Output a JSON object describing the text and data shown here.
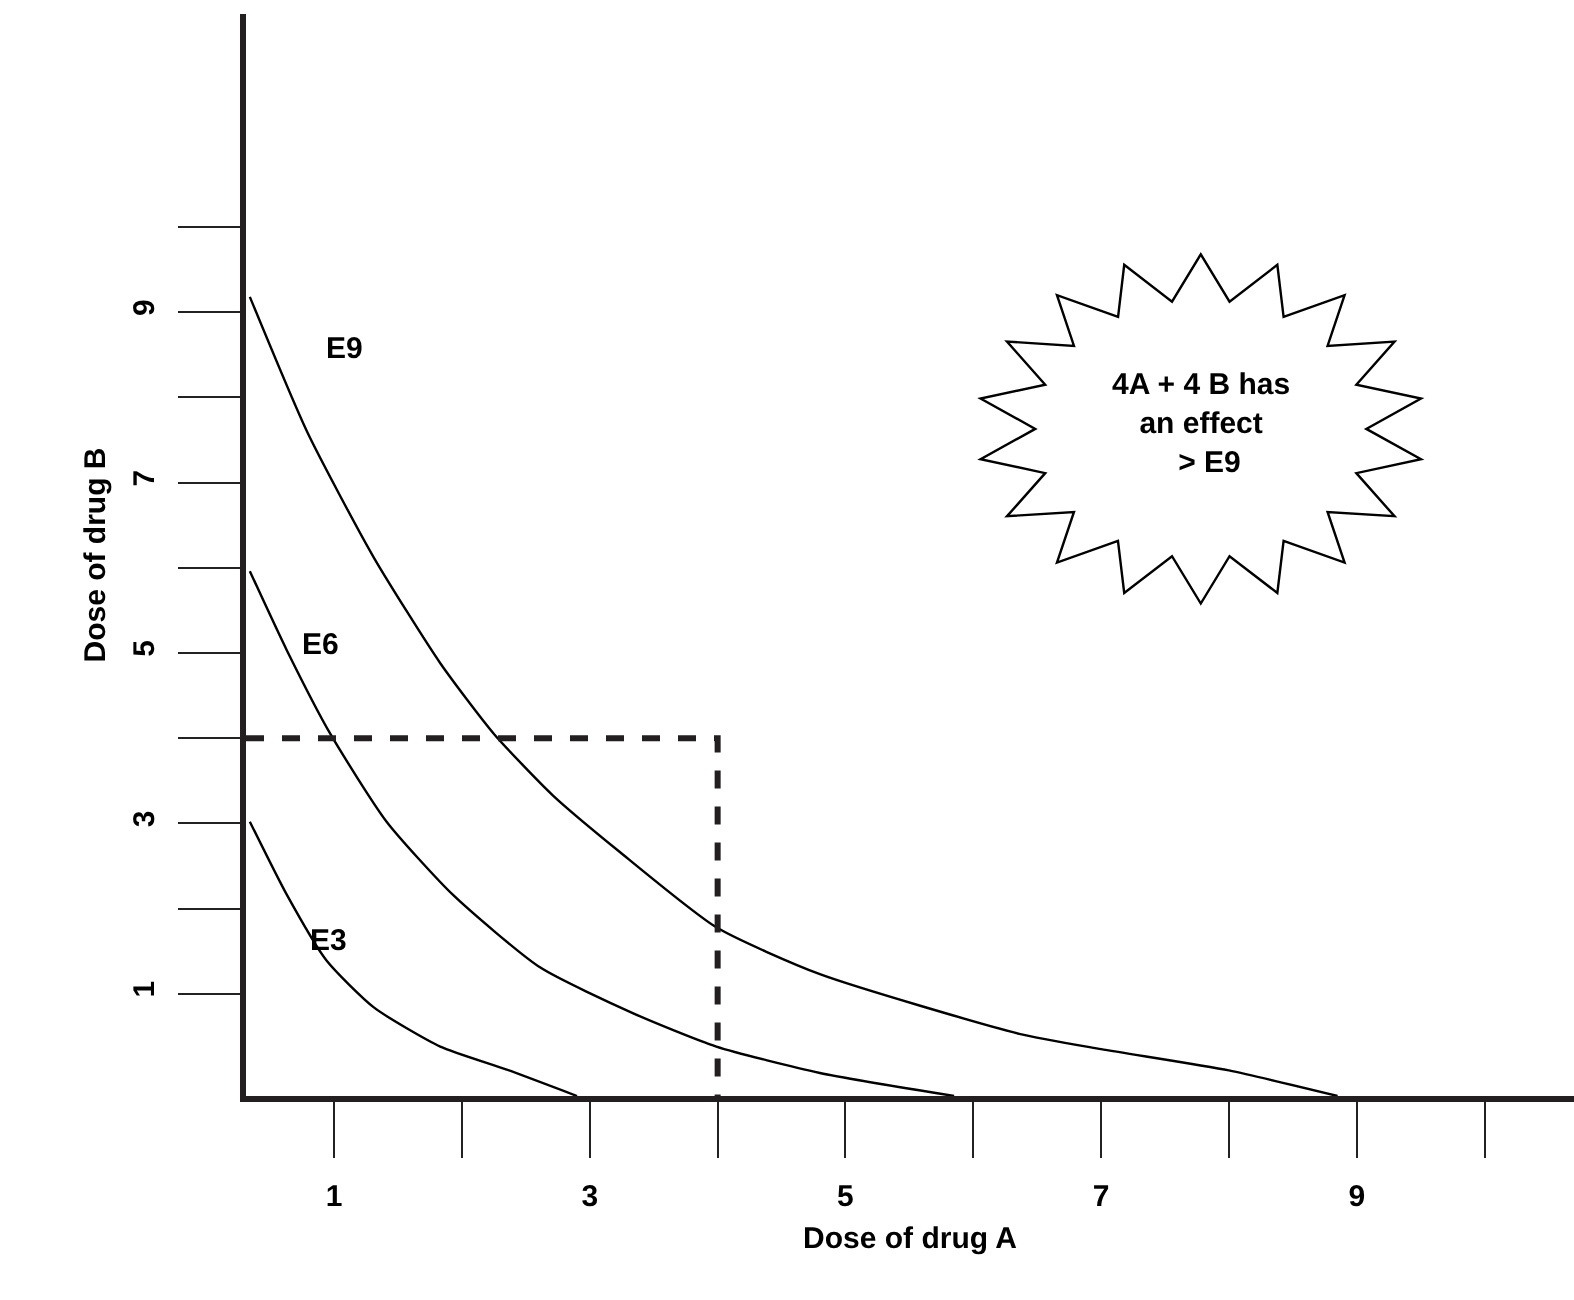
{
  "chart_data": {
    "type": "line",
    "xlabel": "Dose of drug A",
    "ylabel": "Dose of drug B",
    "xlim": [
      0.31,
      10.7
    ],
    "ylim": [
      -0.2,
      12.5
    ],
    "xticks": [
      1,
      3,
      5,
      7,
      9
    ],
    "yticks": [
      1,
      3,
      5,
      7,
      9
    ],
    "grid": false,
    "marker": "none",
    "series": [
      {
        "color": "#000000",
        "line_style": "solid",
        "x": [
          0.34,
          0.79,
          1.31,
          1.83,
          2.25,
          2.71,
          3.23,
          3.99,
          4.8,
          6.36,
          7.0,
          8.0,
          8.85
        ],
        "values": [
          9.18,
          7.59,
          6.12,
          4.88,
          4.05,
          3.33,
          2.67,
          1.78,
          1.23,
          0.53,
          0.35,
          0.1,
          -0.2
        ]
      },
      {
        "color": "#000000",
        "line_style": "solid",
        "x": [
          0.34,
          0.63,
          0.97,
          1.41,
          1.93,
          2.61,
          3.34,
          3.99,
          4.8,
          5.85
        ],
        "values": [
          5.96,
          5.03,
          4.05,
          3.02,
          2.16,
          1.31,
          0.77,
          0.38,
          0.07,
          -0.2
        ]
      },
      {
        "color": "#000000",
        "line_style": "solid",
        "x": [
          0.34,
          0.63,
          0.94,
          1.31,
          1.83,
          2.35,
          2.9
        ],
        "values": [
          3.02,
          2.16,
          1.39,
          0.84,
          0.38,
          0.11,
          -0.2
        ]
      },
      {
        "color": "#231f20",
        "line_style": "dashed",
        "x": [
          0.31,
          4,
          4
        ],
        "values": [
          4,
          4,
          -0.2
        ]
      }
    ],
    "annotations": [
      "E9",
      "E6",
      "E3",
      "4A + 4 B has\nan effect\n  > E9"
    ]
  }
}
